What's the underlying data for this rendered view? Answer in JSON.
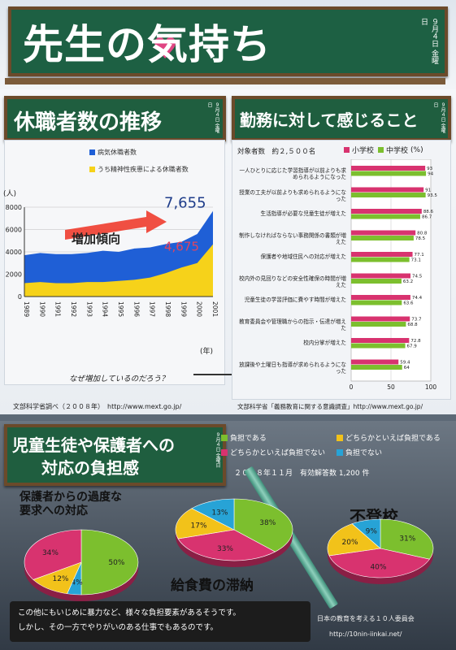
{
  "header": {
    "title_part1": "先生の",
    "title_part2": "気",
    "title_part3": "持ち",
    "date_vertical": "９月４日 金曜日"
  },
  "panel_left": {
    "title": "休職者数の推移",
    "date_vertical": "９月４日 金曜日",
    "legend_sick": "病気休職者数",
    "legend_mental": "うち精神性疾患による休職者数",
    "y_unit": "(人)",
    "x_unit": "(年)",
    "trend_label": "増加傾向",
    "why_text": "なぜ増加しているのだろう？",
    "source_text": "文部科学省調べ（２００８年）　http://www.mext.go.jp/"
  },
  "panel_right": {
    "title": "勤務に対して感じること",
    "date_vertical": "９月４日 金曜日",
    "respondents": "対象者数　約２,５００名",
    "legend_elem": "小学校",
    "legend_jhs": "中学校",
    "legend_unit": "(%)",
    "source_text": "文部科学省「義務教育に関する意識調査」http://www.mext.go.jp/"
  },
  "panel_bottom": {
    "title_line1": "児童生徒や保護者への",
    "title_line2": "対応の負担感",
    "date_vertical": "９月４日 金曜日",
    "legend": [
      {
        "label": "負担である",
        "color": "#7cbf2e"
      },
      {
        "label": "どちらかといえば負担である",
        "color": "#f2c21a"
      },
      {
        "label": "どちらかといえば負担でない",
        "color": "#d8336f"
      },
      {
        "label": "負担でない",
        "color": "#27a3d6"
      }
    ],
    "survey_text": "２００８年１１月　有効解答数 1,200 件",
    "pie_labels": {
      "parents": "保護者からの過度な\n要求への対応",
      "lunch": "給食費の滞納",
      "truancy": "不登校"
    },
    "footer_line1": "この他にもいじめに暴力など、様々な負担要素があるそうです。",
    "footer_line2": "しかし、その一方でやりがいのある仕事でもあるのです。",
    "committee": "日本の教育を考える１０人委員会",
    "committee_url": "http://10nin-iinkai.net/"
  },
  "chart_data": [
    {
      "type": "area",
      "title": "休職者数の推移",
      "ylabel": "(人)",
      "xlabel": "(年)",
      "ylim": [
        0,
        8000
      ],
      "yticks": [
        0,
        2000,
        4000,
        6000,
        8000
      ],
      "x": [
        "1989",
        "1990",
        "1991",
        "1992",
        "1993",
        "1994",
        "1995",
        "1996",
        "1997",
        "1998",
        "1999",
        "2000",
        "2001"
      ],
      "series": [
        {
          "name": "病気休職者数",
          "color": "#1f5fd6",
          "values": [
            3700,
            3900,
            3800,
            3800,
            3900,
            4100,
            4000,
            4300,
            4400,
            4700,
            4900,
            5600,
            7655
          ],
          "end_label": "7,655"
        },
        {
          "name": "うち精神性疾患による休職者数",
          "color": "#f6d21a",
          "values": [
            1200,
            1300,
            1200,
            1200,
            1300,
            1300,
            1400,
            1500,
            1700,
            2100,
            2600,
            3000,
            4675
          ],
          "end_label": "4,675"
        }
      ]
    },
    {
      "type": "bar",
      "title": "勤務に対して感じること",
      "xlim": [
        0,
        100
      ],
      "xticks": [
        0,
        50,
        100
      ],
      "categories": [
        "一人ひとりに応じた学習指導が以前よりも求められるようになった",
        "授業の工夫が以前よりも求められるようになった",
        "生活指導が必要な児童生徒が増えた",
        "制作しなければならない事務関係の書類が増えた",
        "保護者や地域住民への対応が増えた",
        "校内外の見回りなどの安全性確保の時間が増えた",
        "児童生徒の学習評価に費やす時間が増えた",
        "教育委員会や管理職からの指示・伝達が増えた",
        "校内分掌が増えた",
        "放課後や土曜日も指導が求められるようになった"
      ],
      "series": [
        {
          "name": "小学校",
          "color": "#d8336f",
          "values": [
            93,
            91,
            88.6,
            80.8,
            77.1,
            74.5,
            74.4,
            73.7,
            72.8,
            59.4
          ]
        },
        {
          "name": "中学校",
          "color": "#7cbf2e",
          "values": [
            94,
            93.5,
            86.7,
            78.5,
            73.1,
            63.2,
            63.6,
            68.8,
            67.9,
            64
          ]
        }
      ]
    },
    {
      "type": "pie",
      "title": "保護者からの過度な要求への対応",
      "categories": [
        "負担である",
        "どちらかといえば負担である",
        "どちらかといえば負担でない",
        "負担でない"
      ],
      "values": [
        50,
        12,
        34,
        4
      ]
    },
    {
      "type": "pie",
      "title": "給食費の滞納",
      "categories": [
        "負担である",
        "どちらかといえば負担である",
        "どちらかといえば負担でない",
        "負担でない"
      ],
      "values": [
        38,
        17,
        33,
        13
      ]
    },
    {
      "type": "pie",
      "title": "不登校",
      "categories": [
        "負担である",
        "どちらかといえば負担である",
        "どちらかといえば負担でない",
        "負担でない"
      ],
      "values": [
        31,
        20,
        40,
        9
      ]
    }
  ]
}
